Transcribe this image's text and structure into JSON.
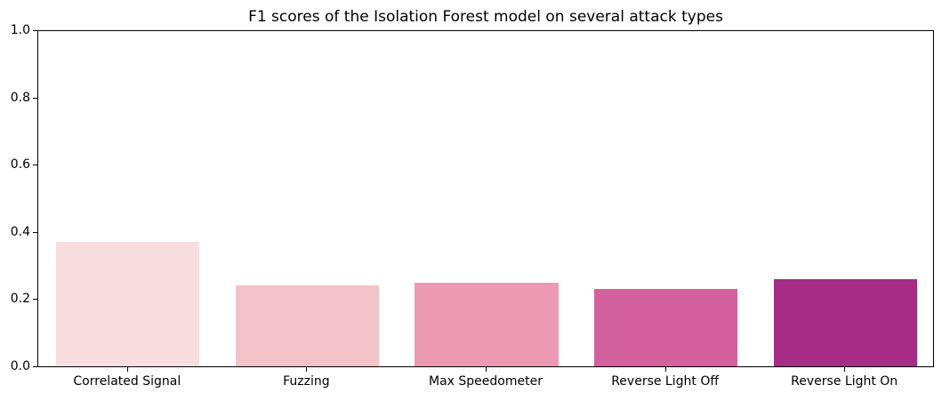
{
  "chart_data": {
    "type": "bar",
    "title": "F1 scores of the Isolation Forest model on several attack types",
    "categories": [
      "Correlated Signal",
      "Fuzzing",
      "Max Speedometer",
      "Reverse Light Off",
      "Reverse Light On"
    ],
    "values": [
      0.37,
      0.24,
      0.25,
      0.23,
      0.26
    ],
    "bar_colors": [
      "#f9dee0",
      "#f4c3c9",
      "#ec9ab3",
      "#d4609e",
      "#a62c85"
    ],
    "xlabel": "",
    "ylabel": "",
    "ylim": [
      0.0,
      1.0
    ],
    "yticks": [
      "0.0",
      "0.2",
      "0.4",
      "0.6",
      "0.8",
      "1.0"
    ],
    "grid": false,
    "legend_position": "none",
    "background_color": "#ffffff",
    "spine_color": "#000000",
    "bar_width_fraction": 0.8
  }
}
